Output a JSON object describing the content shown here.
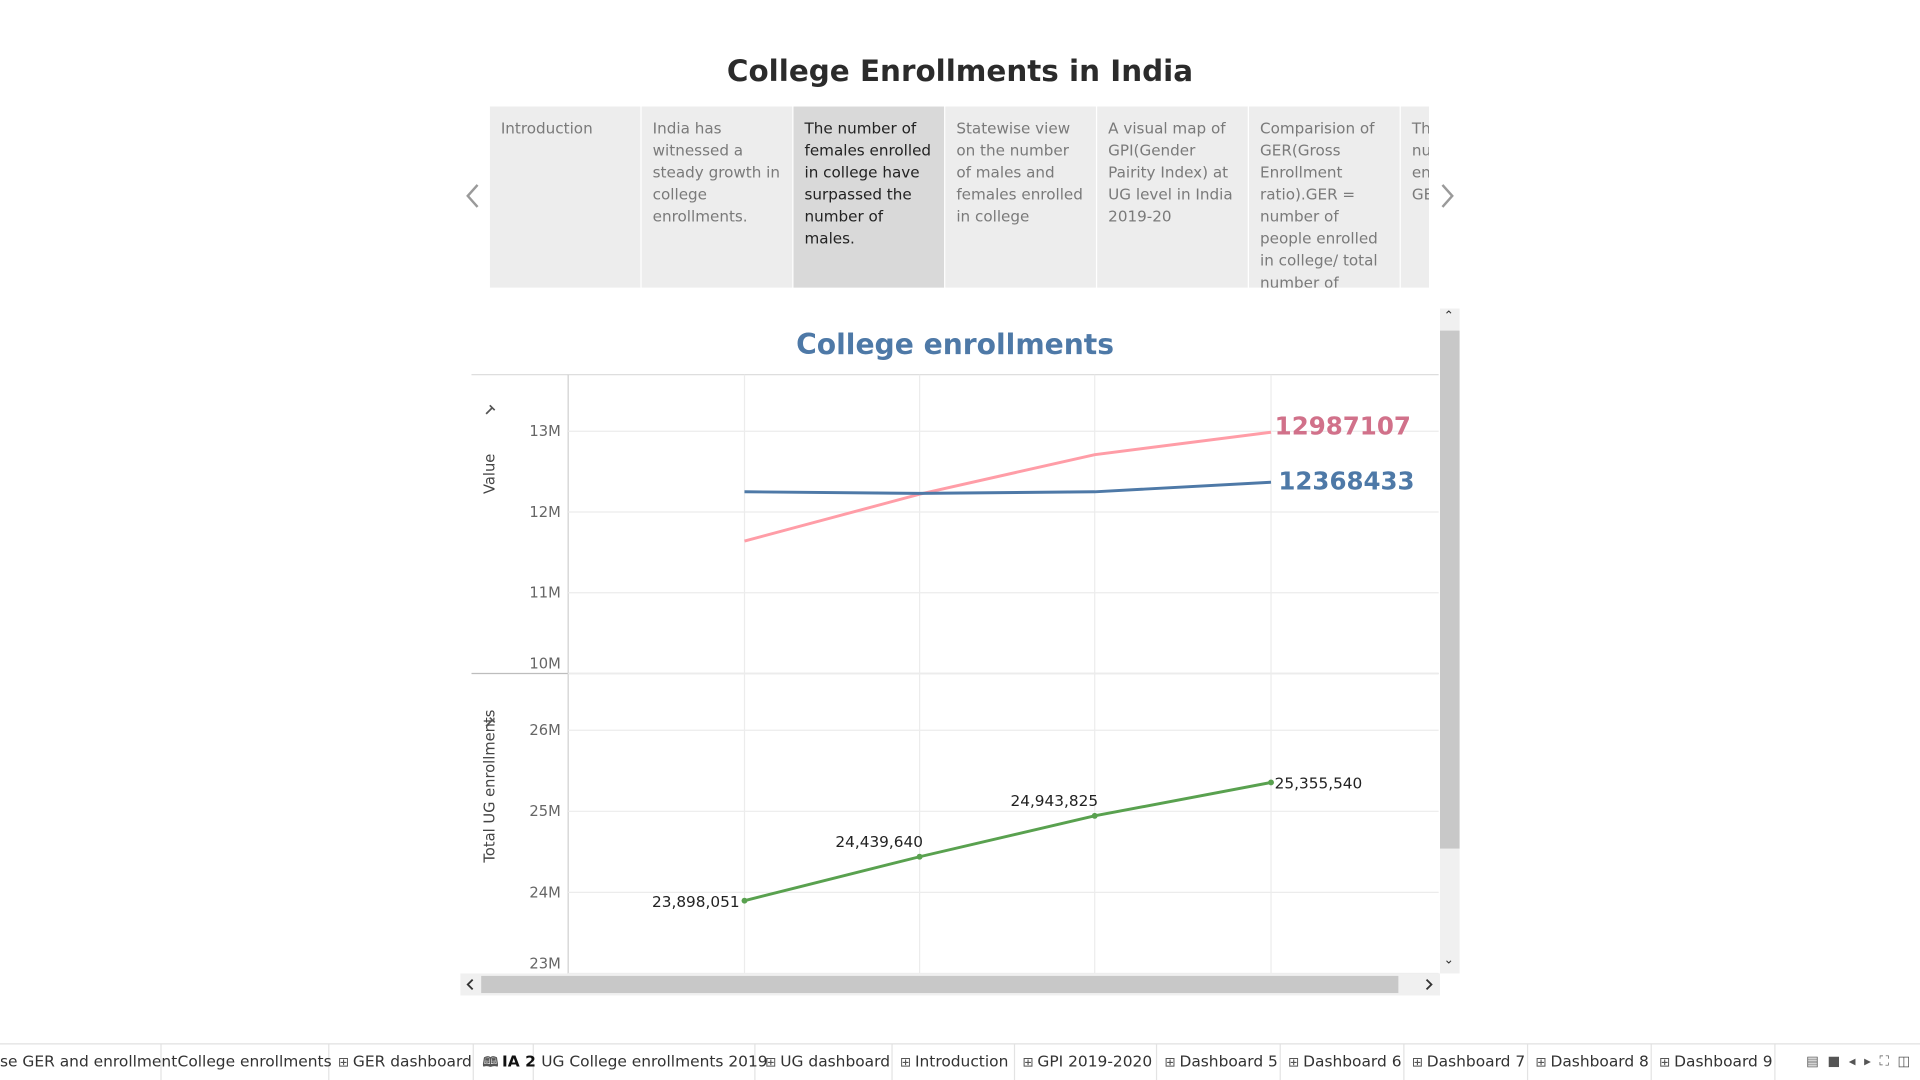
{
  "story": {
    "title": "College Enrollments in India",
    "points": [
      "Introduction",
      "India has witnessed a steady growth in college enrollments.",
      "The number of females enrolled in college have surpassed the number of males.",
      "Statewise view on the number of males and females enrolled in college",
      "A visual map of GPI(Gender Pairity Index) at UG level in India 2019-20",
      "Comparision of GER(Gross Enrollment ratio).GER = number of people enrolled in college/ total number of",
      "The shows the number of enrollments and GER"
    ],
    "active_point": 2
  },
  "chart_data": {
    "type": "line",
    "title": "College enrollments",
    "panes": [
      {
        "ylabel": "Value",
        "yticks": [
          "13M",
          "12M",
          "11M",
          "10M"
        ],
        "ylim": [
          10000000,
          13700000
        ],
        "series": [
          {
            "color": "#ff9da7",
            "label_color": "#d1718a",
            "values": [
              11640000,
              12220000,
              12710000,
              12987107
            ],
            "end_label": "12987107"
          },
          {
            "color": "#4e79a7",
            "label_color": "#4e79a7",
            "values": [
              12250000,
              12230000,
              12250000,
              12368433
            ],
            "end_label": "12368433"
          }
        ]
      },
      {
        "ylabel": "Total UG enrollments",
        "yticks": [
          "26M",
          "25M",
          "24M",
          "23M"
        ],
        "ylim": [
          23000000,
          26700000
        ],
        "series": [
          {
            "color": "#59a14f",
            "values": [
              23898051,
              24439640,
              24943825,
              25355540
            ],
            "point_labels": [
              "23,898,051",
              "24,439,640",
              "24,943,825",
              "25,355,540"
            ]
          }
        ]
      }
    ],
    "grid": true
  },
  "tabs": [
    {
      "label": "se GER and enrollment",
      "icon": ""
    },
    {
      "label": "College enrollments",
      "icon": ""
    },
    {
      "label": "GER dashboard",
      "icon": "dashboard-icon"
    },
    {
      "label": "IA 2",
      "icon": "story-icon"
    },
    {
      "label": "UG College enrollments 2019",
      "icon": ""
    },
    {
      "label": "UG dashboard",
      "icon": "dashboard-icon"
    },
    {
      "label": "Introduction",
      "icon": "dashboard-icon"
    },
    {
      "label": "GPI 2019-2020",
      "icon": "dashboard-icon"
    },
    {
      "label": "Dashboard 5",
      "icon": "dashboard-icon"
    },
    {
      "label": "Dashboard 6",
      "icon": "dashboard-icon"
    },
    {
      "label": "Dashboard 7",
      "icon": "dashboard-icon"
    },
    {
      "label": "Dashboard 8",
      "icon": "dashboard-icon"
    },
    {
      "label": "Dashboard 9",
      "icon": "dashboard-icon"
    }
  ],
  "active_tab": 3
}
